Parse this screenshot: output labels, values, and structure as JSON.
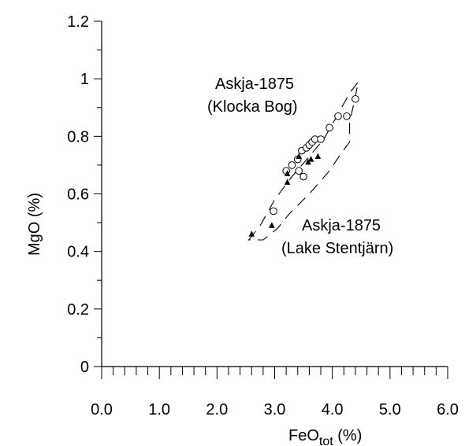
{
  "chart_data": {
    "type": "scatter",
    "xlabel": {
      "main": "FeO",
      "sub": "tot",
      "unit": " (%)"
    },
    "ylabel": "MgO (%)",
    "xlim": [
      0,
      6
    ],
    "ylim": [
      0,
      1.2
    ],
    "x_ticks": [
      "0.0",
      "1.0",
      "2.0",
      "3.0",
      "4.0",
      "5.0",
      "6.0"
    ],
    "y_ticks": [
      "0",
      "0.2",
      "0.4",
      "0.6",
      "0.8",
      "1",
      "1.2"
    ],
    "x_minor_step": 0.2,
    "y_minor_step": 0.1,
    "grid": false,
    "series": [
      {
        "marker": "open-circle",
        "points": [
          [
            2.98,
            0.54
          ],
          [
            3.2,
            0.68
          ],
          [
            3.3,
            0.7
          ],
          [
            3.4,
            0.72
          ],
          [
            3.42,
            0.68
          ],
          [
            3.5,
            0.66
          ],
          [
            3.47,
            0.75
          ],
          [
            3.55,
            0.76
          ],
          [
            3.6,
            0.77
          ],
          [
            3.65,
            0.78
          ],
          [
            3.7,
            0.79
          ],
          [
            3.8,
            0.79
          ],
          [
            3.95,
            0.83
          ],
          [
            4.1,
            0.87
          ],
          [
            4.25,
            0.87
          ],
          [
            4.4,
            0.93
          ]
        ]
      },
      {
        "marker": "filled-triangle",
        "points": [
          [
            2.6,
            0.46
          ],
          [
            2.95,
            0.49
          ],
          [
            3.22,
            0.64
          ],
          [
            3.22,
            0.67
          ],
          [
            3.42,
            0.73
          ],
          [
            3.58,
            0.71
          ],
          [
            3.63,
            0.72
          ],
          [
            3.75,
            0.73
          ]
        ]
      }
    ],
    "envelopes": [
      {
        "label": "klocka",
        "points": [
          [
            2.55,
            0.44
          ],
          [
            2.75,
            0.49
          ],
          [
            3.0,
            0.58
          ],
          [
            3.3,
            0.66
          ],
          [
            3.6,
            0.73
          ],
          [
            3.85,
            0.79
          ],
          [
            4.05,
            0.86
          ],
          [
            4.3,
            0.95
          ],
          [
            4.45,
            0.99
          ],
          [
            4.38,
            0.92
          ],
          [
            4.3,
            0.85
          ],
          [
            4.3,
            0.78
          ],
          [
            4.15,
            0.74
          ],
          [
            3.95,
            0.68
          ],
          [
            3.6,
            0.6
          ],
          [
            3.25,
            0.53
          ],
          [
            3.05,
            0.48
          ],
          [
            2.8,
            0.44
          ],
          [
            2.6,
            0.44
          ]
        ]
      }
    ],
    "annotations": [
      {
        "line1": "Askja-1875",
        "line2": "(Klocka Bog)"
      },
      {
        "line1": "Askja-1875",
        "line2": "(Lake Stentjärn)"
      }
    ]
  }
}
